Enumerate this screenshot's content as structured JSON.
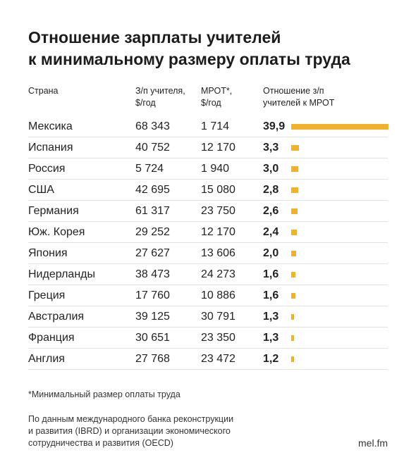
{
  "chart_data": {
    "type": "table",
    "title": "Отношение зарплаты учителей к минимальному размеру оплаты труда",
    "columns": [
      "Страна",
      "З/п учителя, $/год",
      "МРОТ*, $/год",
      "Отношение з/п учителей к МРОТ"
    ],
    "rows": [
      {
        "country": "Мексика",
        "salary": "68 343",
        "min_wage": "1 714",
        "ratio": 39.9,
        "ratio_label": "39,9"
      },
      {
        "country": "Испания",
        "salary": "40 752",
        "min_wage": "12 170",
        "ratio": 3.3,
        "ratio_label": "3,3"
      },
      {
        "country": "Россия",
        "salary": "5 724",
        "min_wage": "1 940",
        "ratio": 3.0,
        "ratio_label": "3,0"
      },
      {
        "country": "США",
        "salary": "42 695",
        "min_wage": "15 080",
        "ratio": 2.8,
        "ratio_label": "2,8"
      },
      {
        "country": "Германия",
        "salary": "61 317",
        "min_wage": "23 750",
        "ratio": 2.6,
        "ratio_label": "2,6"
      },
      {
        "country": "Юж. Корея",
        "salary": "29 252",
        "min_wage": "12 170",
        "ratio": 2.4,
        "ratio_label": "2,4"
      },
      {
        "country": "Япония",
        "salary": "27 627",
        "min_wage": "13 606",
        "ratio": 2.0,
        "ratio_label": "2,0"
      },
      {
        "country": "Нидерланды",
        "salary": "38 473",
        "min_wage": "24 273",
        "ratio": 1.6,
        "ratio_label": "1,6"
      },
      {
        "country": "Греция",
        "salary": "17 760",
        "min_wage": "10 886",
        "ratio": 1.6,
        "ratio_label": "1,6"
      },
      {
        "country": "Австралия",
        "salary": "39 125",
        "min_wage": "30 791",
        "ratio": 1.3,
        "ratio_label": "1,3"
      },
      {
        "country": "Франция",
        "salary": "30 651",
        "min_wage": "23 350",
        "ratio": 1.3,
        "ratio_label": "1,3"
      },
      {
        "country": "Англия",
        "salary": "27 768",
        "min_wage": "23 472",
        "ratio": 1.2,
        "ratio_label": "1,2"
      }
    ],
    "bar_color": "#f2b02b"
  },
  "header": {
    "title_line1": "Отношение зарплаты учителей",
    "title_line2": "к минимальному размеру оплаты труда",
    "col_country": "Страна",
    "col_salary_1": "З/п учителя,",
    "col_salary_2": "$/год",
    "col_minwage_1": "МРОТ*,",
    "col_minwage_2": "$/год",
    "col_ratio_1": "Отношение з/п",
    "col_ratio_2": "учителей к МРОТ"
  },
  "footer": {
    "note": "*Минимальный размер оплаты труда",
    "source_1": "По данным международного банка реконструкции",
    "source_2": "и развития (IBRD) и организации экономического",
    "source_3": "сотрудничества и развития (OECD)",
    "brand": "mel.fm"
  }
}
